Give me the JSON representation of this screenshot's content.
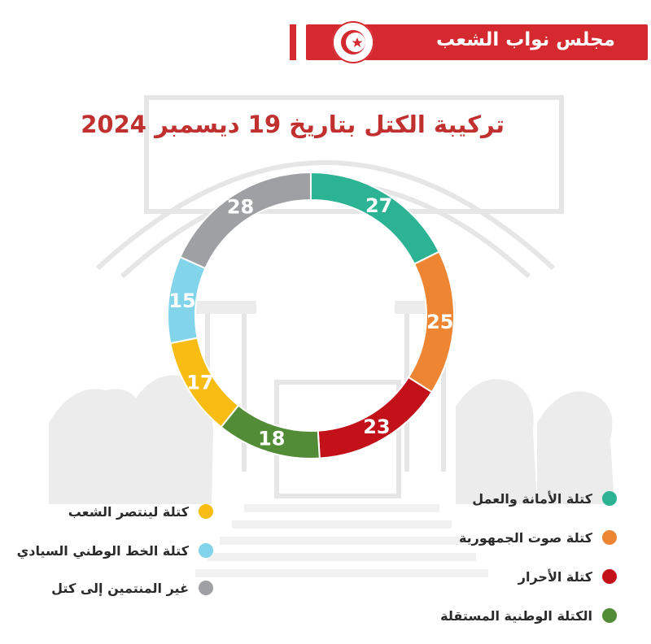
{
  "header": {
    "title": "مجلس نواب الشعب"
  },
  "chart_data": {
    "type": "pie",
    "title": "تركيبة الكتل بتاريخ 19 ديسمبر 2024",
    "categories": [
      "كتلة الأمانة والعمل",
      "كتلة صوت الجمهورية",
      "كتلة الأحرار",
      "الكتلة الوطنية المستقلة",
      "كتلة  لينتصر الشعب",
      "كتلة الخط الوطني السيادي",
      "غير المنتمين إلى كتل"
    ],
    "values": [
      27,
      25,
      23,
      18,
      17,
      15,
      28
    ],
    "colors": [
      "#2bb394",
      "#ee8533",
      "#c3111a",
      "#538c36",
      "#f7bd15",
      "#82d4ea",
      "#9ea0a3"
    ],
    "legend": "bottom"
  }
}
